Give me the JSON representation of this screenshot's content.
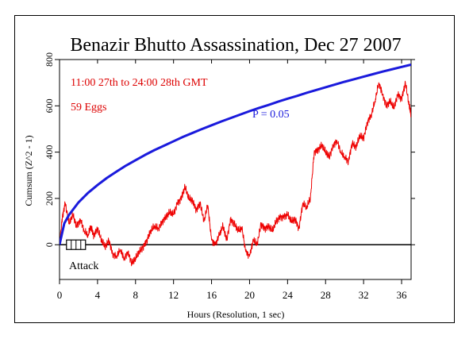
{
  "chart_data": {
    "type": "line",
    "title": "Benazir Bhutto Assassination, Dec 27 2007",
    "subtitle": "11:00 27th to 24:00 28th GMT",
    "eggs_label": "59 Eggs",
    "xlabel": "Hours (Resolution, 1 sec)",
    "ylabel": "Cumsum (Z^2 - 1)",
    "xlim": [
      0,
      37
    ],
    "ylim": [
      -150,
      800
    ],
    "x_ticks": [
      0,
      4,
      8,
      12,
      16,
      20,
      24,
      28,
      32,
      36
    ],
    "y_ticks": [
      0,
      200,
      400,
      600,
      800
    ],
    "grid": false,
    "colors": {
      "data": "#ee0000",
      "threshold": "#1a1adc",
      "subtitle": "#dd0000",
      "baseline": "#000000"
    },
    "series": [
      {
        "name": "",
        "color": "#ee0000",
        "x": [
          0,
          0.3,
          0.6,
          1.0,
          1.4,
          1.8,
          2.2,
          2.6,
          3.0,
          3.3,
          3.6,
          4.0,
          4.4,
          4.8,
          5.2,
          5.6,
          6.0,
          6.4,
          6.8,
          7.2,
          7.6,
          8.0,
          8.4,
          8.8,
          9.2,
          9.6,
          10.0,
          10.4,
          10.8,
          11.2,
          11.6,
          12.0,
          12.4,
          12.8,
          13.2,
          13.6,
          14.0,
          14.4,
          14.8,
          15.2,
          15.6,
          16.0,
          16.4,
          16.8,
          17.2,
          17.6,
          18.0,
          18.4,
          18.8,
          19.2,
          19.6,
          20.0,
          20.4,
          20.8,
          21.2,
          21.6,
          22.0,
          22.4,
          22.8,
          23.2,
          23.6,
          24.0,
          24.4,
          24.8,
          25.2,
          25.6,
          26.0,
          26.4,
          26.8,
          27.2,
          27.6,
          28.0,
          28.4,
          28.8,
          29.2,
          29.6,
          30.0,
          30.4,
          30.8,
          31.2,
          31.6,
          32.0,
          32.4,
          32.8,
          33.2,
          33.6,
          34.0,
          34.4,
          34.8,
          35.2,
          35.6,
          36.0,
          36.4,
          36.8,
          37.0
        ],
        "values": [
          0,
          120,
          180,
          90,
          130,
          80,
          110,
          60,
          40,
          80,
          40,
          70,
          20,
          -10,
          20,
          -40,
          -50,
          -20,
          -60,
          -30,
          -80,
          -60,
          -30,
          -10,
          20,
          60,
          80,
          70,
          100,
          120,
          140,
          130,
          180,
          200,
          250,
          200,
          190,
          150,
          180,
          100,
          170,
          20,
          0,
          40,
          80,
          20,
          110,
          90,
          60,
          70,
          -30,
          -50,
          20,
          0,
          90,
          70,
          80,
          60,
          100,
          120,
          120,
          130,
          100,
          110,
          70,
          180,
          160,
          200,
          400,
          410,
          430,
          400,
          380,
          430,
          450,
          400,
          380,
          360,
          440,
          420,
          470,
          460,
          530,
          560,
          620,
          700,
          650,
          600,
          620,
          590,
          650,
          630,
          700,
          600,
          560
        ]
      },
      {
        "name": "P = 0.05",
        "color": "#1a1adc",
        "x": [
          0,
          0.5,
          1,
          2,
          3,
          4,
          5,
          6,
          7,
          8,
          9,
          10,
          11,
          12,
          13,
          14,
          15,
          16,
          17,
          18,
          19,
          20,
          21,
          22,
          23,
          24,
          25,
          26,
          27,
          28,
          29,
          30,
          31,
          32,
          33,
          34,
          35,
          36,
          37
        ],
        "values": [
          0,
          92,
          129,
          183,
          224,
          258,
          289,
          316,
          342,
          365,
          388,
          409,
          428,
          447,
          466,
          483,
          500,
          516,
          532,
          547,
          562,
          577,
          591,
          604,
          618,
          631,
          643,
          656,
          668,
          680,
          692,
          704,
          715,
          726,
          737,
          748,
          758,
          768,
          778
        ]
      }
    ],
    "annotations": [
      {
        "text": "Attack",
        "x": 0.9,
        "y": -80
      }
    ]
  }
}
